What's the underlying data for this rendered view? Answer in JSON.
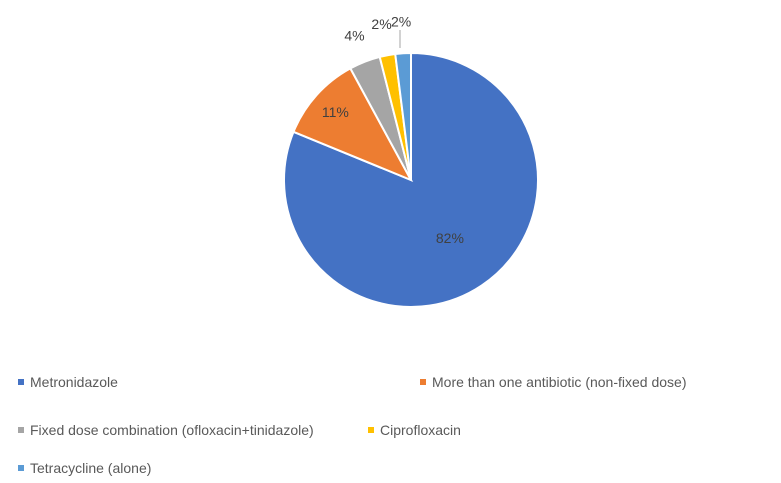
{
  "chart_data": {
    "type": "pie",
    "title": "",
    "slices": [
      {
        "label": "Metronidazole",
        "value": 82,
        "display": "82%",
        "color": "#4472C4"
      },
      {
        "label": "More than one antibiotic (non-fixed dose)",
        "value": 11,
        "display": "11%",
        "color": "#ED7D31"
      },
      {
        "label": "Fixed dose combination (ofloxacin+tinidazole)",
        "value": 4,
        "display": "4%",
        "color": "#A5A5A5"
      },
      {
        "label": "Ciprofloxacin",
        "value": 2,
        "display": "2%",
        "color": "#FFC000"
      },
      {
        "label": "Tetracycline (alone)",
        "value": 2,
        "display": "2%",
        "color": "#5B9BD5"
      }
    ],
    "legend_position": "bottom"
  }
}
